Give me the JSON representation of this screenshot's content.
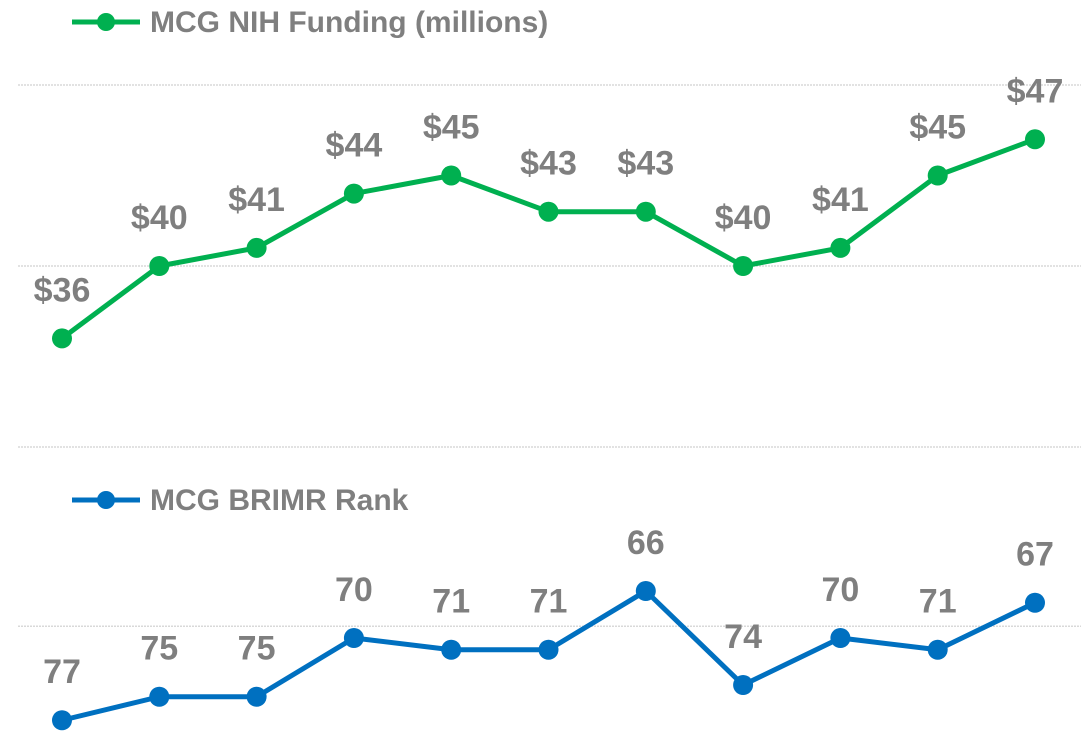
{
  "chart_data": [
    {
      "type": "line",
      "series": [
        {
          "name": "MCG NIH Funding (millions)",
          "color": "#00b050",
          "values": [
            36,
            40,
            41,
            44,
            45,
            43,
            43,
            40,
            41,
            45,
            47
          ],
          "value_labels": [
            "$36",
            "$40",
            "$41",
            "$44",
            "$45",
            "$43",
            "$43",
            "$40",
            "$41",
            "$45",
            "$47"
          ]
        }
      ],
      "ylim": [
        30,
        50
      ],
      "yticks": [
        30,
        40,
        50
      ],
      "grid": true
    },
    {
      "type": "line",
      "series": [
        {
          "name": "MCG BRIMR Rank",
          "color": "#0070c0",
          "values": [
            77,
            75,
            75,
            70,
            71,
            71,
            66,
            74,
            70,
            71,
            67
          ]
        }
      ],
      "ylim": [
        78,
        62
      ],
      "yticks": [
        69
      ],
      "grid": true
    }
  ]
}
